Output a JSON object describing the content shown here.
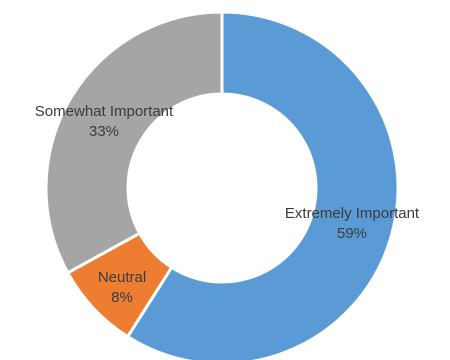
{
  "chart_data": {
    "type": "pie",
    "donut": true,
    "title": "",
    "legend": "none",
    "slices": [
      {
        "label": "Extremely Important",
        "value": 59,
        "value_label": "59%",
        "color": "#5b9bd5"
      },
      {
        "label": "Neutral",
        "value": 8,
        "value_label": "8%",
        "color": "#ed7d31"
      },
      {
        "label": "Somewhat Important",
        "value": 33,
        "value_label": "33%",
        "color": "#a5a5a5"
      }
    ]
  }
}
